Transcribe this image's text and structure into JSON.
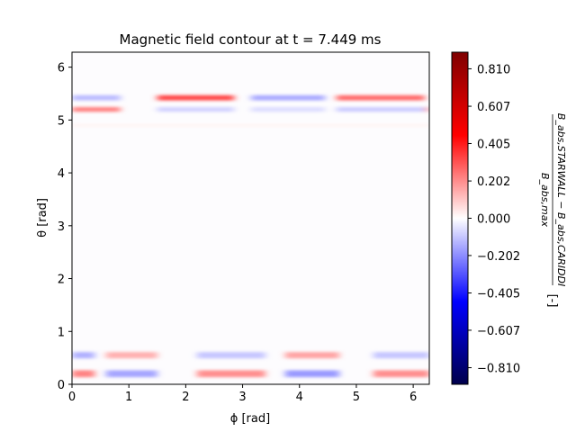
{
  "chart_data": {
    "type": "heatmap",
    "title": "Magnetic field contour at t = 7.449 ms",
    "xlabel": "ϕ [rad]",
    "ylabel": "θ [rad]",
    "xlim": [
      0,
      6.283
    ],
    "ylim": [
      0,
      6.283
    ],
    "x_ticks": [
      "0",
      "1",
      "2",
      "3",
      "4",
      "5",
      "6"
    ],
    "x_tick_values": [
      0,
      1,
      2,
      3,
      4,
      5,
      6
    ],
    "y_ticks": [
      "0",
      "1",
      "2",
      "3",
      "4",
      "5",
      "6"
    ],
    "y_tick_values": [
      0,
      1,
      2,
      3,
      4,
      5,
      6
    ],
    "colormap": "seismic",
    "colorbar": {
      "vmin": -0.9,
      "vmax": 0.9,
      "ticks": [
        "0.810",
        "0.607",
        "0.405",
        "0.202",
        "0.000",
        "−0.202",
        "−0.405",
        "−0.607",
        "−0.810"
      ],
      "tick_values": [
        0.81,
        0.607,
        0.405,
        0.202,
        0.0,
        -0.202,
        -0.405,
        -0.607,
        -0.81
      ],
      "label_numerator": "B_abs,STARWALL − B_abs,CARIDDI",
      "label_denominator": "B_abs,max",
      "label_unit": "[-]"
    },
    "bands": [
      {
        "theta": 5.42,
        "width": 0.05,
        "segments": [
          {
            "phi": [
              0.0,
              0.85
            ],
            "value": -0.12
          },
          {
            "phi": [
              1.5,
              2.85
            ],
            "value": 0.32
          },
          {
            "phi": [
              3.15,
              4.45
            ],
            "value": -0.15
          },
          {
            "phi": [
              4.65,
              6.2
            ],
            "value": 0.26
          }
        ]
      },
      {
        "theta": 5.2,
        "width": 0.045,
        "segments": [
          {
            "phi": [
              0.0,
              0.85
            ],
            "value": 0.22
          },
          {
            "phi": [
              1.5,
              2.85
            ],
            "value": -0.08
          },
          {
            "phi": [
              3.15,
              4.45
            ],
            "value": -0.06
          },
          {
            "phi": [
              4.65,
              6.2
            ],
            "value": -0.09
          },
          {
            "phi": [
              6.2,
              6.283
            ],
            "value": 0.15
          }
        ]
      },
      {
        "theta": 4.9,
        "width": 0.03,
        "segments": [
          {
            "phi": [
              0.0,
              6.283
            ],
            "value": 0.02
          }
        ]
      },
      {
        "theta": 0.55,
        "width": 0.06,
        "segments": [
          {
            "phi": [
              0.0,
              0.4
            ],
            "value": -0.14
          },
          {
            "phi": [
              0.6,
              1.5
            ],
            "value": 0.14
          },
          {
            "phi": [
              2.2,
              3.4
            ],
            "value": -0.1
          },
          {
            "phi": [
              3.75,
              4.7
            ],
            "value": 0.16
          },
          {
            "phi": [
              5.3,
              6.283
            ],
            "value": -0.1
          }
        ]
      },
      {
        "theta": 0.2,
        "width": 0.065,
        "segments": [
          {
            "phi": [
              0.0,
              0.4
            ],
            "value": 0.22
          },
          {
            "phi": [
              0.6,
              1.5
            ],
            "value": -0.16
          },
          {
            "phi": [
              2.2,
              3.4
            ],
            "value": 0.2
          },
          {
            "phi": [
              3.75,
              4.7
            ],
            "value": -0.18
          },
          {
            "phi": [
              5.3,
              6.283
            ],
            "value": 0.2
          }
        ]
      }
    ]
  }
}
